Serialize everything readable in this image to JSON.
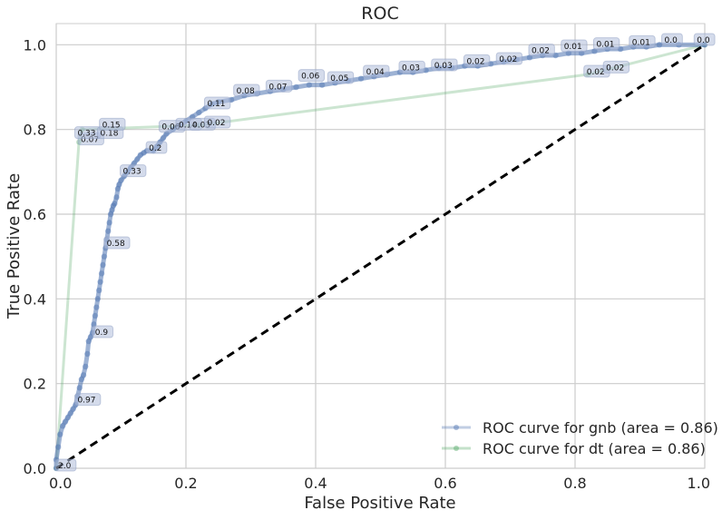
{
  "chart_data": {
    "type": "line",
    "title": "ROC",
    "xlabel": "False Positive Rate",
    "ylabel": "True Positive Rate",
    "xlim": [
      0,
      1
    ],
    "ylim": [
      0,
      1.05
    ],
    "x_ticks": [
      "0.0",
      "0.2",
      "0.4",
      "0.6",
      "0.8",
      "1.0"
    ],
    "y_ticks": [
      "0.0",
      "0.2",
      "0.4",
      "0.6",
      "0.8",
      "1.0"
    ],
    "grid": true,
    "legend_position": "lower-right",
    "series": [
      {
        "name": "ROC curve for gnb (area = 0.86)",
        "color": "#4c72b0",
        "points": [
          [
            0.0,
            0.0
          ],
          [
            0.0,
            0.02
          ],
          [
            0.003,
            0.05
          ],
          [
            0.006,
            0.08
          ],
          [
            0.01,
            0.1
          ],
          [
            0.014,
            0.11
          ],
          [
            0.018,
            0.12
          ],
          [
            0.022,
            0.13
          ],
          [
            0.026,
            0.14
          ],
          [
            0.03,
            0.15
          ],
          [
            0.033,
            0.17
          ],
          [
            0.036,
            0.19
          ],
          [
            0.039,
            0.21
          ],
          [
            0.042,
            0.22
          ],
          [
            0.045,
            0.24
          ],
          [
            0.048,
            0.27
          ],
          [
            0.05,
            0.3
          ],
          [
            0.053,
            0.31
          ],
          [
            0.056,
            0.32
          ],
          [
            0.058,
            0.34
          ],
          [
            0.06,
            0.36
          ],
          [
            0.062,
            0.38
          ],
          [
            0.064,
            0.4
          ],
          [
            0.066,
            0.42
          ],
          [
            0.068,
            0.44
          ],
          [
            0.07,
            0.46
          ],
          [
            0.072,
            0.48
          ],
          [
            0.074,
            0.5
          ],
          [
            0.076,
            0.52
          ],
          [
            0.078,
            0.54
          ],
          [
            0.08,
            0.56
          ],
          [
            0.082,
            0.58
          ],
          [
            0.084,
            0.6
          ],
          [
            0.086,
            0.61
          ],
          [
            0.088,
            0.62
          ],
          [
            0.09,
            0.625
          ],
          [
            0.093,
            0.64
          ],
          [
            0.095,
            0.66
          ],
          [
            0.097,
            0.67
          ],
          [
            0.1,
            0.68
          ],
          [
            0.105,
            0.69
          ],
          [
            0.11,
            0.7
          ],
          [
            0.115,
            0.71
          ],
          [
            0.12,
            0.72
          ],
          [
            0.125,
            0.73
          ],
          [
            0.13,
            0.74
          ],
          [
            0.135,
            0.745
          ],
          [
            0.14,
            0.75
          ],
          [
            0.15,
            0.75
          ],
          [
            0.155,
            0.76
          ],
          [
            0.16,
            0.77
          ],
          [
            0.165,
            0.78
          ],
          [
            0.17,
            0.79
          ],
          [
            0.18,
            0.8
          ],
          [
            0.19,
            0.81
          ],
          [
            0.2,
            0.82
          ],
          [
            0.21,
            0.83
          ],
          [
            0.22,
            0.84
          ],
          [
            0.23,
            0.85
          ],
          [
            0.24,
            0.86
          ],
          [
            0.25,
            0.865
          ],
          [
            0.27,
            0.87
          ],
          [
            0.29,
            0.88
          ],
          [
            0.31,
            0.885
          ],
          [
            0.33,
            0.89
          ],
          [
            0.35,
            0.895
          ],
          [
            0.37,
            0.9
          ],
          [
            0.39,
            0.905
          ],
          [
            0.41,
            0.905
          ],
          [
            0.43,
            0.91
          ],
          [
            0.45,
            0.915
          ],
          [
            0.47,
            0.92
          ],
          [
            0.49,
            0.925
          ],
          [
            0.51,
            0.93
          ],
          [
            0.53,
            0.935
          ],
          [
            0.55,
            0.935
          ],
          [
            0.57,
            0.94
          ],
          [
            0.59,
            0.945
          ],
          [
            0.61,
            0.945
          ],
          [
            0.63,
            0.95
          ],
          [
            0.65,
            0.95
          ],
          [
            0.67,
            0.955
          ],
          [
            0.69,
            0.96
          ],
          [
            0.71,
            0.965
          ],
          [
            0.73,
            0.97
          ],
          [
            0.75,
            0.975
          ],
          [
            0.77,
            0.975
          ],
          [
            0.79,
            0.98
          ],
          [
            0.81,
            0.98
          ],
          [
            0.83,
            0.985
          ],
          [
            0.85,
            0.99
          ],
          [
            0.87,
            0.99
          ],
          [
            0.89,
            0.995
          ],
          [
            0.91,
            0.995
          ],
          [
            0.93,
            1.0
          ],
          [
            0.96,
            1.0
          ],
          [
            1.0,
            1.0
          ]
        ]
      },
      {
        "name": "ROC curve for dt (area = 0.86)",
        "color": "#55a868",
        "points": [
          [
            0.0,
            0.0
          ],
          [
            0.035,
            0.77
          ],
          [
            0.04,
            0.8
          ],
          [
            0.22,
            0.81
          ],
          [
            0.82,
            0.93
          ],
          [
            1.0,
            1.0
          ]
        ]
      }
    ],
    "chance_line": {
      "points": [
        [
          0,
          0
        ],
        [
          1,
          1
        ]
      ],
      "color": "#000000",
      "style": "dashed"
    },
    "annotations": [
      {
        "x": 0.0,
        "y": 0.0,
        "text": "2.0"
      },
      {
        "x": 0.03,
        "y": 0.155,
        "text": "0.97"
      },
      {
        "x": 0.057,
        "y": 0.315,
        "text": "0.9"
      },
      {
        "x": 0.075,
        "y": 0.525,
        "text": "0.58"
      },
      {
        "x": 0.1,
        "y": 0.695,
        "text": "0.33"
      },
      {
        "x": 0.035,
        "y": 0.77,
        "text": "0.07"
      },
      {
        "x": 0.03,
        "y": 0.785,
        "text": "0.33"
      },
      {
        "x": 0.065,
        "y": 0.785,
        "text": "0.18"
      },
      {
        "x": 0.068,
        "y": 0.805,
        "text": "0.15"
      },
      {
        "x": 0.14,
        "y": 0.75,
        "text": "0.2"
      },
      {
        "x": 0.16,
        "y": 0.8,
        "text": "0.06"
      },
      {
        "x": 0.186,
        "y": 0.805,
        "text": "0.14"
      },
      {
        "x": 0.207,
        "y": 0.805,
        "text": "0.03"
      },
      {
        "x": 0.23,
        "y": 0.81,
        "text": "0.02"
      },
      {
        "x": 0.23,
        "y": 0.855,
        "text": "0.11"
      },
      {
        "x": 0.275,
        "y": 0.885,
        "text": "0.08"
      },
      {
        "x": 0.325,
        "y": 0.895,
        "text": "0.07"
      },
      {
        "x": 0.375,
        "y": 0.92,
        "text": "0.06"
      },
      {
        "x": 0.42,
        "y": 0.915,
        "text": "0.05"
      },
      {
        "x": 0.475,
        "y": 0.93,
        "text": "0.04"
      },
      {
        "x": 0.53,
        "y": 0.94,
        "text": "0.03"
      },
      {
        "x": 0.58,
        "y": 0.945,
        "text": "0.03"
      },
      {
        "x": 0.63,
        "y": 0.955,
        "text": "0.02"
      },
      {
        "x": 0.68,
        "y": 0.96,
        "text": "0.02"
      },
      {
        "x": 0.73,
        "y": 0.98,
        "text": "0.02"
      },
      {
        "x": 0.78,
        "y": 0.99,
        "text": "0.01"
      },
      {
        "x": 0.83,
        "y": 0.995,
        "text": "0.01"
      },
      {
        "x": 0.885,
        "y": 1.0,
        "text": "0.01"
      },
      {
        "x": 0.935,
        "y": 1.005,
        "text": "0.0"
      },
      {
        "x": 0.985,
        "y": 1.005,
        "text": "0.0"
      },
      {
        "x": 0.815,
        "y": 0.93,
        "text": "0.02"
      },
      {
        "x": 0.845,
        "y": 0.94,
        "text": "0.02"
      }
    ]
  }
}
